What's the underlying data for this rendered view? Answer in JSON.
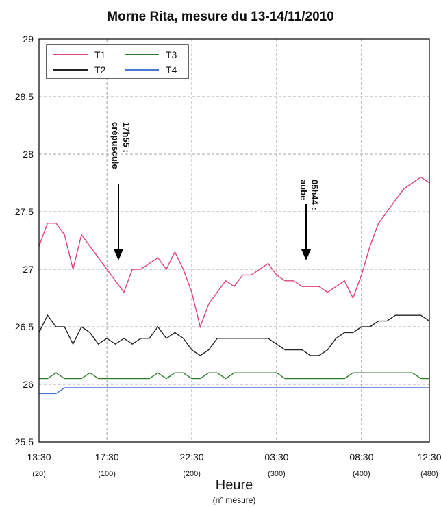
{
  "chart_data": {
    "type": "line",
    "title": "Morne Rita, mesure du 13-14/11/2010",
    "x_label": "Heure",
    "x_sublabel": "(n° mesure)",
    "xlim": [
      20,
      480
    ],
    "xticks": [
      {
        "value": 20,
        "label": "13:30"
      },
      {
        "value": 100,
        "label": "17:30"
      },
      {
        "value": 200,
        "label": "22:30"
      },
      {
        "value": 300,
        "label": "03:30"
      },
      {
        "value": 400,
        "label": "08:30"
      },
      {
        "value": 480,
        "label": "12:30"
      }
    ],
    "xtick_sublabels": [
      "(20)",
      "(100)",
      "(200)",
      "(300)",
      "(400)",
      "(480)"
    ],
    "ylim": [
      25.5,
      29
    ],
    "yticks": [
      {
        "value": 25.5,
        "label": "25,5"
      },
      26,
      {
        "value": 26.5,
        "label": "26,5"
      },
      27,
      {
        "value": 27.5,
        "label": "27,5"
      },
      28,
      {
        "value": 28.5,
        "label": "28,5"
      },
      29
    ],
    "grid": true,
    "legend": "upper left",
    "annotations": [
      [
        "17h55 :",
        "crépuscule"
      ],
      [
        "05h44 :",
        "aube"
      ]
    ],
    "x": [
      20,
      30,
      40,
      50,
      60,
      70,
      80,
      90,
      100,
      110,
      120,
      130,
      140,
      150,
      160,
      170,
      180,
      190,
      200,
      210,
      220,
      230,
      240,
      250,
      260,
      270,
      280,
      290,
      300,
      310,
      320,
      330,
      340,
      350,
      360,
      370,
      380,
      390,
      400,
      410,
      420,
      430,
      440,
      450,
      460,
      470,
      480
    ],
    "series": [
      {
        "name": "T1",
        "color": "#e0407f",
        "values": [
          27.2,
          27.4,
          27.4,
          27.3,
          27.0,
          27.3,
          27.2,
          27.1,
          27.0,
          26.9,
          26.8,
          27.0,
          27.0,
          27.05,
          27.1,
          27.0,
          27.15,
          27.0,
          26.8,
          26.5,
          26.7,
          26.8,
          26.9,
          26.85,
          26.95,
          26.95,
          27.0,
          27.05,
          26.95,
          26.9,
          26.9,
          26.85,
          26.85,
          26.85,
          26.8,
          26.85,
          26.9,
          26.75,
          26.95,
          27.2,
          27.4,
          27.5,
          27.6,
          27.7,
          27.75,
          27.8,
          27.75
        ]
      },
      {
        "name": "T2",
        "color": "#222222",
        "values": [
          26.45,
          26.6,
          26.5,
          26.5,
          26.35,
          26.5,
          26.45,
          26.35,
          26.4,
          26.35,
          26.4,
          26.35,
          26.4,
          26.4,
          26.5,
          26.4,
          26.45,
          26.4,
          26.3,
          26.25,
          26.3,
          26.4,
          26.4,
          26.4,
          26.4,
          26.4,
          26.4,
          26.4,
          26.35,
          26.3,
          26.3,
          26.3,
          26.25,
          26.25,
          26.3,
          26.4,
          26.45,
          26.45,
          26.5,
          26.5,
          26.55,
          26.55,
          26.6,
          26.6,
          26.6,
          26.6,
          26.55
        ]
      },
      {
        "name": "T3",
        "color": "#2e7d2e",
        "values": [
          26.05,
          26.05,
          26.1,
          26.05,
          26.05,
          26.05,
          26.1,
          26.05,
          26.05,
          26.05,
          26.05,
          26.05,
          26.05,
          26.05,
          26.1,
          26.05,
          26.1,
          26.1,
          26.05,
          26.05,
          26.1,
          26.1,
          26.05,
          26.1,
          26.1,
          26.1,
          26.1,
          26.1,
          26.1,
          26.05,
          26.05,
          26.05,
          26.05,
          26.05,
          26.05,
          26.05,
          26.05,
          26.1,
          26.1,
          26.1,
          26.1,
          26.1,
          26.1,
          26.1,
          26.1,
          26.05,
          26.05
        ]
      },
      {
        "name": "T4",
        "color": "#4a78d4",
        "values": [
          25.92,
          25.92,
          25.92,
          25.97,
          25.97,
          25.97,
          25.97,
          25.97,
          25.97,
          25.97,
          25.97,
          25.97,
          25.97,
          25.97,
          25.97,
          25.97,
          25.97,
          25.97,
          25.97,
          25.97,
          25.97,
          25.97,
          25.97,
          25.97,
          25.97,
          25.97,
          25.97,
          25.97,
          25.97,
          25.97,
          25.97,
          25.97,
          25.97,
          25.97,
          25.97,
          25.97,
          25.97,
          25.97,
          25.97,
          25.97,
          25.97,
          25.97,
          25.97,
          25.97,
          25.97,
          25.97,
          25.97
        ]
      }
    ]
  }
}
